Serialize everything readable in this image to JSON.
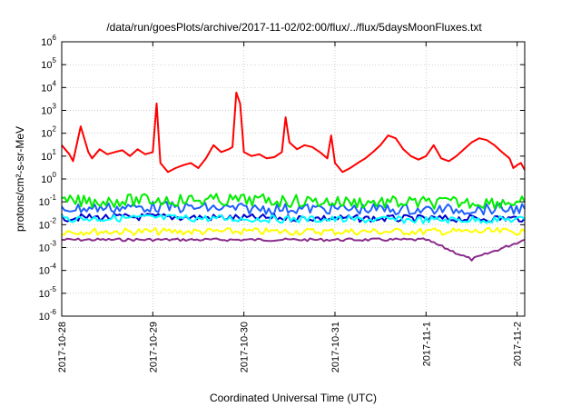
{
  "chart_data": {
    "type": "line",
    "title": "/data/run/goesPlots/archive/2017-11-02/02:00/flux/../flux/5daysMoonFluxes.txt",
    "xlabel": "Coordinated Universal Time (UTC)",
    "ylabel": "protons/cm²-s-sr-MeV",
    "yscale": "log",
    "ylim": [
      1e-06,
      1000000.0
    ],
    "xlim": [
      "2017-10-28",
      "2017-11-02T02:00"
    ],
    "grid": true,
    "y_ticks": [
      {
        "base": "10",
        "exp": "-6"
      },
      {
        "base": "10",
        "exp": "-5"
      },
      {
        "base": "10",
        "exp": "-4"
      },
      {
        "base": "10",
        "exp": "-3"
      },
      {
        "base": "10",
        "exp": "-2"
      },
      {
        "base": "10",
        "exp": "-1"
      },
      {
        "base": "10",
        "exp": "0"
      },
      {
        "base": "10",
        "exp": "1"
      },
      {
        "base": "10",
        "exp": "2"
      },
      {
        "base": "10",
        "exp": "3"
      },
      {
        "base": "10",
        "exp": "4"
      },
      {
        "base": "10",
        "exp": "5"
      },
      {
        "base": "10",
        "exp": "6"
      }
    ],
    "x_ticks": [
      "2017-10-28",
      "2017-10-29",
      "2017-10-30",
      "2017-10-31",
      "2017-11-1",
      "2017-11-2"
    ],
    "series": [
      {
        "color": "#ff0000",
        "x": [
          "2017-10-28T00:00",
          "2017-10-28T02:00",
          "2017-10-28T03:00",
          "2017-10-28T05:00",
          "2017-10-28T07:00",
          "2017-10-28T08:00",
          "2017-10-28T10:00",
          "2017-10-28T12:00",
          "2017-10-28T14:00",
          "2017-10-28T16:00",
          "2017-10-28T18:00",
          "2017-10-28T20:00",
          "2017-10-28T22:00",
          "2017-10-29T00:00",
          "2017-10-29T01:00",
          "2017-10-29T02:00",
          "2017-10-29T04:00",
          "2017-10-29T06:00",
          "2017-10-29T08:00",
          "2017-10-29T10:00",
          "2017-10-29T12:00",
          "2017-10-29T14:00",
          "2017-10-29T16:00",
          "2017-10-29T18:00",
          "2017-10-29T20:00",
          "2017-10-29T21:00",
          "2017-10-29T22:00",
          "2017-10-29T23:00",
          "2017-10-30T00:00",
          "2017-10-30T02:00",
          "2017-10-30T04:00",
          "2017-10-30T06:00",
          "2017-10-30T08:00",
          "2017-10-30T10:00",
          "2017-10-30T11:00",
          "2017-10-30T12:00",
          "2017-10-30T14:00",
          "2017-10-30T16:00",
          "2017-10-30T18:00",
          "2017-10-30T20:00",
          "2017-10-30T22:00",
          "2017-10-30T23:00",
          "2017-10-31T00:00",
          "2017-10-31T02:00",
          "2017-10-31T04:00",
          "2017-10-31T06:00",
          "2017-10-31T08:00",
          "2017-10-31T10:00",
          "2017-10-31T12:00",
          "2017-10-31T14:00",
          "2017-10-31T16:00",
          "2017-10-31T18:00",
          "2017-10-31T20:00",
          "2017-10-31T22:00",
          "2017-11-01T00:00",
          "2017-11-01T02:00",
          "2017-11-01T04:00",
          "2017-11-01T06:00",
          "2017-11-01T08:00",
          "2017-11-01T10:00",
          "2017-11-01T12:00",
          "2017-11-01T14:00",
          "2017-11-01T16:00",
          "2017-11-01T18:00",
          "2017-11-01T20:00",
          "2017-11-01T22:00",
          "2017-11-01T23:00",
          "2017-11-02T00:00",
          "2017-11-02T01:00",
          "2017-11-02T02:00"
        ],
        "values": [
          30,
          12,
          6,
          200,
          15,
          8,
          20,
          12,
          15,
          18,
          10,
          20,
          12,
          15,
          2000,
          5,
          2,
          3,
          4,
          5,
          3,
          8,
          30,
          15,
          20,
          25,
          6000,
          2000,
          15,
          10,
          12,
          8,
          9,
          15,
          500,
          40,
          20,
          30,
          25,
          15,
          8,
          80,
          5,
          2,
          3,
          5,
          8,
          15,
          30,
          80,
          60,
          20,
          10,
          7,
          10,
          30,
          8,
          6,
          10,
          20,
          40,
          60,
          50,
          30,
          15,
          8,
          3,
          4,
          5,
          2.5
        ]
      },
      {
        "color": "#00ee00",
        "x": [
          "2017-10-28",
          "2017-10-29",
          "2017-10-30",
          "2017-10-31",
          "2017-11-01",
          "2017-11-02T02:00"
        ],
        "values": [
          0.1,
          0.12,
          0.12,
          0.1,
          0.09,
          0.1
        ]
      },
      {
        "color": "#1e60ff",
        "x": [
          "2017-10-28",
          "2017-10-29",
          "2017-10-30",
          "2017-10-31",
          "2017-11-01",
          "2017-11-02T02:00"
        ],
        "values": [
          0.05,
          0.06,
          0.05,
          0.05,
          0.045,
          0.05
        ]
      },
      {
        "color": "#00ffff",
        "x": [
          "2017-10-28",
          "2017-10-29",
          "2017-10-30",
          "2017-10-31",
          "2017-11-01",
          "2017-11-02T02:00"
        ],
        "values": [
          0.018,
          0.02,
          0.018,
          0.017,
          0.016,
          0.017
        ]
      },
      {
        "color": "#0000cc",
        "x": [
          "2017-10-28",
          "2017-10-29",
          "2017-10-30",
          "2017-10-31",
          "2017-11-01",
          "2017-11-02T02:00"
        ],
        "values": [
          0.02,
          0.022,
          0.02,
          0.019,
          0.018,
          0.019
        ]
      },
      {
        "color": "#ffff00",
        "x": [
          "2017-10-28",
          "2017-10-29",
          "2017-10-30",
          "2017-10-31",
          "2017-11-01",
          "2017-11-02T02:00"
        ],
        "values": [
          0.005,
          0.005,
          0.005,
          0.005,
          0.005,
          0.005
        ]
      },
      {
        "color": "#8b2c8b",
        "x": [
          "2017-10-28",
          "2017-10-29",
          "2017-10-30",
          "2017-10-31",
          "2017-11-01",
          "2017-11-01T12:00",
          "2017-11-02T02:00"
        ],
        "values": [
          0.0022,
          0.0022,
          0.0022,
          0.0022,
          0.0022,
          0.0003,
          0.0022
        ]
      }
    ]
  }
}
